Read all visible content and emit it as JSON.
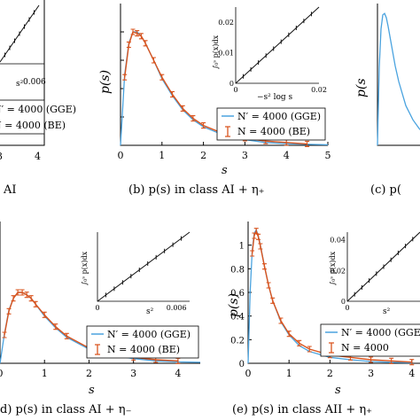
{
  "colors": {
    "model_curve": "#4aa3df",
    "data_points": "#d9541e",
    "inset_data": "#111111"
  },
  "chart_data": [
    {
      "id": "top_left",
      "type": "line",
      "caption": "AI",
      "xlabel": "",
      "ylabel": "",
      "xlim": [
        0,
        5
      ],
      "ylim": [
        0,
        1.0
      ],
      "xticks": [
        3,
        4,
        5
      ],
      "legend": [
        "N′ = 4000 (GGE)",
        "N = 4000 (BE)"
      ],
      "inset": {
        "xlabel": "s²",
        "ylabel": "",
        "xticks": [
          0.006
        ],
        "yticks": []
      }
    },
    {
      "id": "top_middle",
      "type": "line",
      "caption": "(b) p(s) in class AI + η₊",
      "xlabel": "s",
      "ylabel": "p(s)",
      "xlim": [
        0,
        5
      ],
      "ylim": [
        0,
        1.0
      ],
      "xticks": [
        0,
        1,
        2,
        3,
        4,
        5
      ],
      "yticks": [
        0,
        0.2,
        0.4,
        0.6,
        0.8
      ],
      "series": [
        {
          "name": "N′ = 4000 (GGE)",
          "style": "curve",
          "x": [
            0,
            0.1,
            0.2,
            0.3,
            0.4,
            0.5,
            0.6,
            0.8,
            1.0,
            1.25,
            1.5,
            1.75,
            2.0,
            2.5,
            3.0,
            3.5,
            4.0,
            4.5,
            5.0
          ],
          "y": [
            0,
            0.5,
            0.72,
            0.8,
            0.8,
            0.77,
            0.72,
            0.6,
            0.47,
            0.35,
            0.25,
            0.18,
            0.13,
            0.07,
            0.04,
            0.02,
            0.012,
            0.007,
            0.004
          ]
        },
        {
          "name": "N = 4000 (BE)",
          "style": "errorbar",
          "x": [
            0.1,
            0.2,
            0.3,
            0.4,
            0.5,
            0.6,
            0.8,
            1.0,
            1.25,
            1.5,
            1.75,
            2.0,
            2.5,
            3.0,
            3.5,
            4.0,
            4.5
          ],
          "y": [
            0.48,
            0.71,
            0.8,
            0.79,
            0.77,
            0.72,
            0.6,
            0.48,
            0.36,
            0.26,
            0.19,
            0.14,
            0.08,
            0.05,
            0.03,
            0.02,
            0.01
          ]
        }
      ],
      "inset": {
        "xlabel": "−s² log s",
        "ylabel": "∫₀ˢ p(x)dx",
        "xlim": [
          0,
          0.02
        ],
        "ylim": [
          0,
          0.025
        ],
        "xticks": [
          0,
          0.02
        ],
        "yticks": [
          0,
          0.01,
          0.02
        ]
      }
    },
    {
      "id": "top_right",
      "type": "line",
      "caption": "(c) p(",
      "xlabel": "",
      "ylabel": "p(s",
      "xlim": [
        0,
        1.2
      ],
      "ylim": [
        0,
        1.0
      ],
      "series": [
        {
          "name": "",
          "style": "curve",
          "x": [
            0,
            0.05,
            0.1,
            0.15,
            0.2,
            0.25,
            0.3,
            0.4,
            0.5,
            0.6,
            0.8,
            1.0,
            1.2
          ],
          "y": [
            0,
            0.55,
            0.82,
            0.92,
            0.93,
            0.9,
            0.84,
            0.7,
            0.56,
            0.45,
            0.28,
            0.18,
            0.11
          ]
        }
      ]
    },
    {
      "id": "bottom_left",
      "type": "line",
      "caption": "d) p(s) in class AI + η₋",
      "xlabel": "s",
      "ylabel": "",
      "xlim": [
        0,
        4.5
      ],
      "ylim": [
        0,
        1.2
      ],
      "xticks": [
        0,
        1,
        2,
        3,
        4
      ],
      "series": [
        {
          "name": "N′ = 4000 (GGE)",
          "style": "curve",
          "x": [
            0,
            0.1,
            0.2,
            0.3,
            0.4,
            0.5,
            0.6,
            0.7,
            0.8,
            1.0,
            1.25,
            1.5,
            2.0,
            2.5,
            3.0,
            3.5,
            4.0,
            4.5
          ],
          "y": [
            0,
            0.25,
            0.45,
            0.55,
            0.6,
            0.6,
            0.58,
            0.55,
            0.5,
            0.4,
            0.3,
            0.22,
            0.12,
            0.07,
            0.04,
            0.02,
            0.012,
            0.008
          ]
        },
        {
          "name": "N = 4000 (BE)",
          "style": "errorbar",
          "x": [
            0.1,
            0.2,
            0.3,
            0.4,
            0.5,
            0.6,
            0.7,
            0.8,
            1.0,
            1.25,
            1.5,
            2.0,
            2.5,
            3.0,
            3.5,
            4.0
          ],
          "y": [
            0.24,
            0.44,
            0.55,
            0.6,
            0.6,
            0.58,
            0.55,
            0.5,
            0.41,
            0.31,
            0.23,
            0.13,
            0.08,
            0.05,
            0.03,
            0.02
          ]
        }
      ],
      "legend": [
        "N′ = 4000 (GGE)",
        "N = 4000 (BE)"
      ],
      "inset": {
        "xlabel": "s²",
        "ylabel": "∫₀ˢ p(x)dx",
        "xlim": [
          0,
          0.007
        ],
        "ylim": [
          0,
          0.012
        ],
        "xticks": [
          0,
          0.006
        ],
        "yticks": []
      }
    },
    {
      "id": "bottom_right",
      "type": "line",
      "caption": "(e) p(s) in class AII + η₊",
      "xlabel": "s",
      "ylabel": "p(s)",
      "xlim": [
        0,
        4.2
      ],
      "ylim": [
        0,
        1.2
      ],
      "xticks": [
        0,
        1,
        2,
        3,
        4
      ],
      "yticks": [
        0,
        0.2,
        0.4,
        0.6,
        0.8,
        1
      ],
      "series": [
        {
          "name": "N′ = 4000 (GGE)",
          "style": "curve",
          "x": [
            0,
            0.05,
            0.1,
            0.15,
            0.2,
            0.25,
            0.3,
            0.4,
            0.5,
            0.6,
            0.8,
            1.0,
            1.25,
            1.5,
            2.0,
            2.5,
            3.0,
            3.5,
            4.0
          ],
          "y": [
            0,
            0.6,
            0.95,
            1.1,
            1.13,
            1.08,
            1.0,
            0.82,
            0.66,
            0.53,
            0.35,
            0.24,
            0.15,
            0.1,
            0.05,
            0.03,
            0.015,
            0.008,
            0.005
          ]
        },
        {
          "name": "N = 4000 (BE)",
          "style": "errorbar",
          "x": [
            0.1,
            0.15,
            0.2,
            0.25,
            0.3,
            0.4,
            0.5,
            0.6,
            0.8,
            1.0,
            1.25,
            1.5,
            2.0,
            2.5,
            3.0,
            3.5,
            4.0
          ],
          "y": [
            0.93,
            1.08,
            1.12,
            1.07,
            0.99,
            0.82,
            0.66,
            0.53,
            0.36,
            0.25,
            0.17,
            0.12,
            0.07,
            0.05,
            0.03,
            0.02,
            0.01
          ]
        }
      ],
      "legend": [
        "N′ = 4000 (GGE)",
        "N = 4000"
      ],
      "inset": {
        "xlabel": "s²",
        "ylabel": "∫₀ˢ p(x)dx",
        "xlim": [
          0,
          0.015
        ],
        "ylim": [
          0,
          0.045
        ],
        "xticks": [
          0
        ],
        "yticks": [
          0,
          0.02,
          0.04
        ]
      }
    }
  ]
}
